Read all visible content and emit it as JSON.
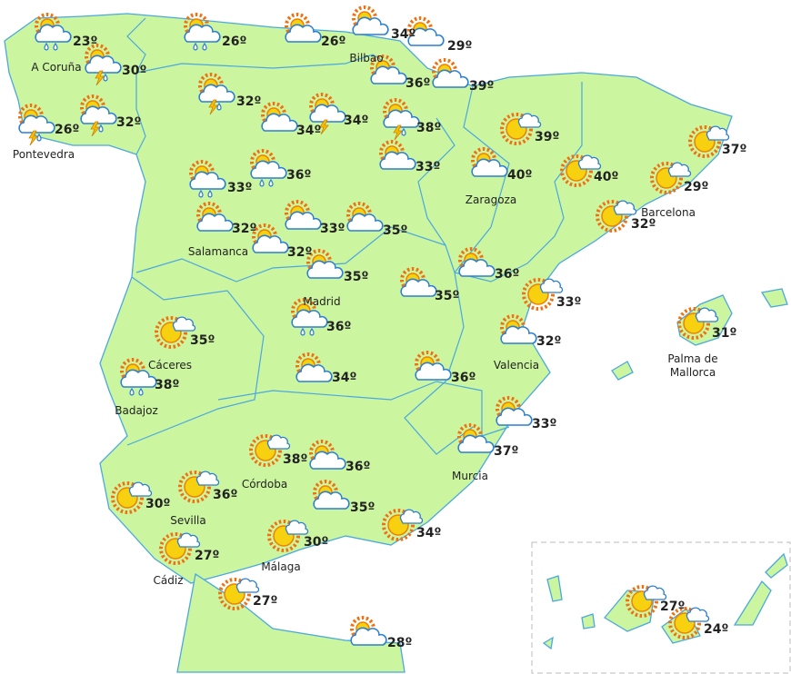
{
  "stations": [
    {
      "temp": "23º",
      "icon": "rain",
      "city": "A Coruña"
    },
    {
      "temp": "30º",
      "icon": "storm-rain"
    },
    {
      "temp": "26º",
      "icon": "storm-rain",
      "city": "Pontevedra"
    },
    {
      "temp": "32º",
      "icon": "storm-rain"
    },
    {
      "temp": "26º",
      "icon": "rain"
    },
    {
      "temp": "26º",
      "icon": "cloud"
    },
    {
      "temp": "34º",
      "icon": "cloud",
      "city": "Bilbao"
    },
    {
      "temp": "29º",
      "icon": "cloud"
    },
    {
      "temp": "36º",
      "icon": "cloud"
    },
    {
      "temp": "39º",
      "icon": "cloud"
    },
    {
      "temp": "32º",
      "icon": "storm-rain"
    },
    {
      "temp": "34º",
      "icon": "cloud"
    },
    {
      "temp": "34º",
      "icon": "storm"
    },
    {
      "temp": "38º",
      "icon": "storm-rain"
    },
    {
      "temp": "33º",
      "icon": "cloud"
    },
    {
      "temp": "39º",
      "icon": "sun"
    },
    {
      "temp": "33º",
      "icon": "rain"
    },
    {
      "temp": "36º",
      "icon": "rain"
    },
    {
      "temp": "40º",
      "icon": "cloud",
      "city": "Zaragoza"
    },
    {
      "temp": "40º",
      "icon": "sun"
    },
    {
      "temp": "37º",
      "icon": "sun"
    },
    {
      "temp": "29º",
      "icon": "sun",
      "city": "Barcelona"
    },
    {
      "temp": "32º",
      "icon": "sun"
    },
    {
      "temp": "32º",
      "icon": "cloud",
      "city": "Salamanca"
    },
    {
      "temp": "32º",
      "icon": "cloud"
    },
    {
      "temp": "33º",
      "icon": "cloud"
    },
    {
      "temp": "35º",
      "icon": "cloud"
    },
    {
      "temp": "35º",
      "icon": "cloud",
      "city": "Madrid"
    },
    {
      "temp": "35º",
      "icon": "cloud"
    },
    {
      "temp": "36º",
      "icon": "cloud"
    },
    {
      "temp": "33º",
      "icon": "sun"
    },
    {
      "temp": "32º",
      "icon": "cloud",
      "city": "Valencia"
    },
    {
      "temp": "31º",
      "icon": "sun",
      "city": "Palma de Mallorca"
    },
    {
      "temp": "35º",
      "icon": "sun",
      "city": "Cáceres"
    },
    {
      "temp": "36º",
      "icon": "rain"
    },
    {
      "temp": "38º",
      "icon": "rain",
      "city": "Badajoz"
    },
    {
      "temp": "34º",
      "icon": "cloud"
    },
    {
      "temp": "36º",
      "icon": "cloud"
    },
    {
      "temp": "33º",
      "icon": "cloud"
    },
    {
      "temp": "37º",
      "icon": "cloud",
      "city": "Murcia"
    },
    {
      "temp": "38º",
      "icon": "sun",
      "city": "Córdoba"
    },
    {
      "temp": "36º",
      "icon": "cloud"
    },
    {
      "temp": "36º",
      "icon": "sun",
      "city": "Sevilla"
    },
    {
      "temp": "30º",
      "icon": "sun"
    },
    {
      "temp": "35º",
      "icon": "cloud"
    },
    {
      "temp": "34º",
      "icon": "sun"
    },
    {
      "temp": "30º",
      "icon": "sun",
      "city": "Málaga"
    },
    {
      "temp": "27º",
      "icon": "sun",
      "city": "Cádiz"
    },
    {
      "temp": "27º",
      "icon": "sun"
    },
    {
      "temp": "28º",
      "icon": "cloud"
    },
    {
      "temp": "27º",
      "icon": "sun"
    },
    {
      "temp": "24º",
      "icon": "sun"
    }
  ]
}
